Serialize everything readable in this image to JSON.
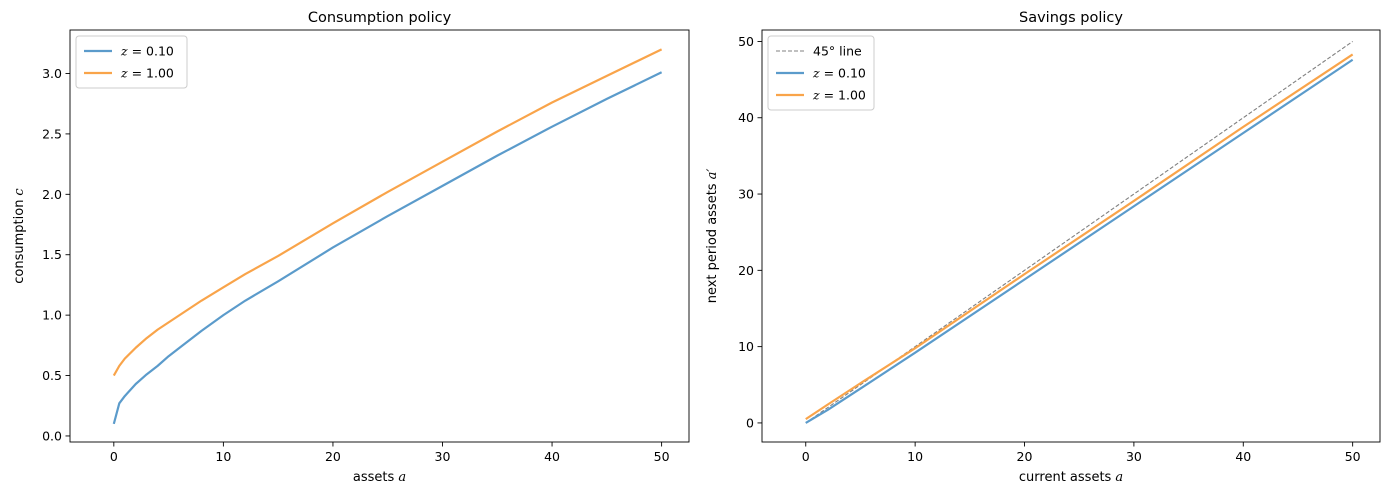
{
  "chart_data": [
    {
      "type": "line",
      "title": "Consumption policy",
      "xlabel": "assets",
      "xlabel_var": "a",
      "ylabel": "consumption",
      "ylabel_var": "c",
      "xlim": [
        -4,
        52.5
      ],
      "ylim": [
        -0.05,
        3.36
      ],
      "xticks": [
        0,
        10,
        20,
        30,
        40,
        50
      ],
      "xtick_labels": [
        "0",
        "10",
        "20",
        "30",
        "40",
        "50"
      ],
      "yticks": [
        0.0,
        0.5,
        1.0,
        1.5,
        2.0,
        2.5,
        3.0
      ],
      "ytick_labels": [
        "0.0",
        "0.5",
        "1.0",
        "1.5",
        "2.0",
        "2.5",
        "3.0"
      ],
      "grid": false,
      "legend_position": "top-left",
      "series": [
        {
          "name_prefix": "z",
          "name_value": "= 0.10",
          "color": "#5b9bcb",
          "style": "solid",
          "x": [
            0,
            0.5,
            1,
            2,
            3,
            4,
            5,
            6,
            8,
            10,
            12,
            15,
            20,
            25,
            30,
            35,
            40,
            45,
            50
          ],
          "y": [
            0.1,
            0.27,
            0.33,
            0.43,
            0.51,
            0.58,
            0.66,
            0.73,
            0.87,
            1.0,
            1.12,
            1.28,
            1.56,
            1.82,
            2.07,
            2.32,
            2.56,
            2.79,
            3.01
          ]
        },
        {
          "name_prefix": "z",
          "name_value": "= 1.00",
          "color": "#f9a44a",
          "style": "solid",
          "x": [
            0,
            0.5,
            1,
            2,
            3,
            4,
            5,
            6,
            8,
            10,
            12,
            15,
            20,
            25,
            30,
            35,
            40,
            45,
            50
          ],
          "y": [
            0.5,
            0.58,
            0.64,
            0.73,
            0.81,
            0.88,
            0.94,
            1.0,
            1.12,
            1.23,
            1.34,
            1.49,
            1.76,
            2.02,
            2.27,
            2.52,
            2.76,
            2.98,
            3.2
          ]
        }
      ]
    },
    {
      "type": "line",
      "title": "Savings policy",
      "xlabel": "current assets",
      "xlabel_var": "a",
      "ylabel": "next period assets",
      "ylabel_var": "a′",
      "xlim": [
        -4,
        52.5
      ],
      "ylim": [
        -2.5,
        51.5
      ],
      "xticks": [
        0,
        10,
        20,
        30,
        40,
        50
      ],
      "xtick_labels": [
        "0",
        "10",
        "20",
        "30",
        "40",
        "50"
      ],
      "yticks": [
        0,
        10,
        20,
        30,
        40,
        50
      ],
      "ytick_labels": [
        "0",
        "10",
        "20",
        "30",
        "40",
        "50"
      ],
      "grid": false,
      "legend_position": "top-left",
      "series": [
        {
          "name": "45° line",
          "color": "#808080",
          "style": "dashed",
          "x": [
            0,
            50
          ],
          "y": [
            0,
            50
          ]
        },
        {
          "name_prefix": "z",
          "name_value": "= 0.10",
          "color": "#5b9bcb",
          "style": "solid",
          "x": [
            0,
            2,
            5,
            10,
            20,
            30,
            40,
            50
          ],
          "y": [
            0,
            1.7,
            4.5,
            9.2,
            18.8,
            28.4,
            38.0,
            47.6
          ]
        },
        {
          "name_prefix": "z",
          "name_value": "= 1.00",
          "color": "#f9a44a",
          "style": "solid",
          "x": [
            0,
            2,
            5,
            10,
            20,
            30,
            40,
            50
          ],
          "y": [
            0.5,
            2.4,
            5.2,
            9.8,
            19.5,
            29.1,
            38.8,
            48.3
          ]
        }
      ]
    }
  ]
}
